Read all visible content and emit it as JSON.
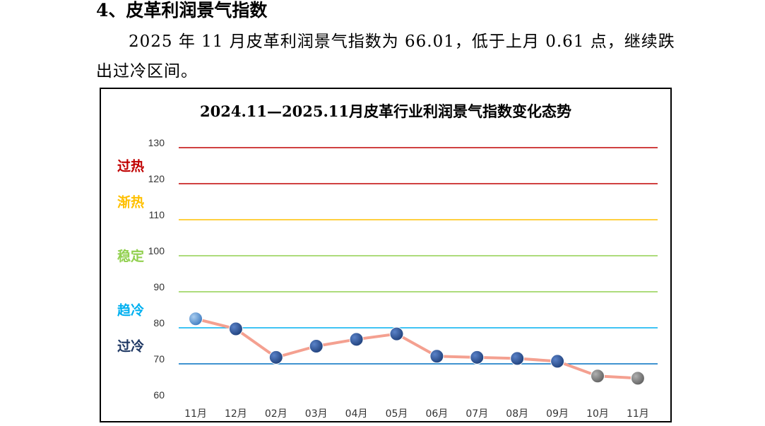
{
  "section": {
    "heading": "4、皮革利润景气指数",
    "paragraph": "2025 年 11 月皮革利润景气指数为 66.01，低于上月 0.61 点，继续跌出过冷区间。"
  },
  "chart_data": {
    "type": "line",
    "title": "2024.11—2025.11月皮革行业利润景气指数变化态势",
    "categories": [
      "11月",
      "12月",
      "02月",
      "03月",
      "04月",
      "05月",
      "06月",
      "07月",
      "08月",
      "09月",
      "10月",
      "11月"
    ],
    "values": [
      82.5,
      79.7,
      71.8,
      74.9,
      76.8,
      78.3,
      72.1,
      71.8,
      71.5,
      70.7,
      66.62,
      66.01
    ],
    "ylim": [
      60,
      130
    ],
    "yticks": [
      60,
      70,
      80,
      90,
      100,
      110,
      120,
      130
    ],
    "zone_lines": [
      {
        "value": 130,
        "color": "#c00000"
      },
      {
        "value": 120,
        "color": "#c00000"
      },
      {
        "value": 110,
        "color": "#ffc000"
      },
      {
        "value": 100,
        "color": "#92d050"
      },
      {
        "value": 90,
        "color": "#92d050"
      },
      {
        "value": 80,
        "color": "#00b0f0"
      },
      {
        "value": 70,
        "color": "#0070c0"
      }
    ],
    "zones": [
      {
        "label": "过热",
        "value": 125,
        "color": "#c00000"
      },
      {
        "label": "渐热",
        "value": 115,
        "color": "#ffc000"
      },
      {
        "label": "稳定",
        "value": 100,
        "color": "#92d050"
      },
      {
        "label": "趋冷",
        "value": 85,
        "color": "#00b0f0"
      },
      {
        "label": "过冷",
        "value": 75,
        "color": "#1f3864"
      }
    ],
    "line_color": "#f4a090",
    "marker_colors": [
      "#5b9bd5",
      "#2f5597",
      "#2f5597",
      "#2f5597",
      "#2f5597",
      "#2f5597",
      "#2f5597",
      "#2f5597",
      "#2f5597",
      "#2f5597",
      "#808080",
      "#808080"
    ],
    "grid": false,
    "legend": "none"
  }
}
